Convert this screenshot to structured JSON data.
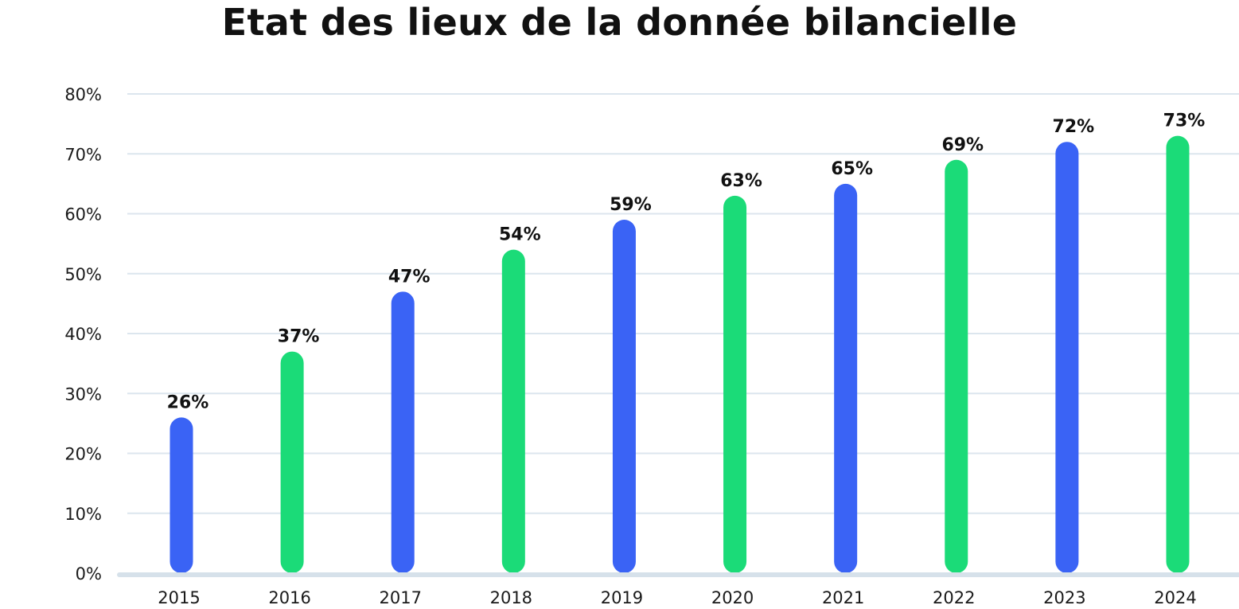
{
  "chart_data": {
    "type": "bar",
    "title": "Etat des lieux de la donnée bilancielle",
    "xlabel": "",
    "ylabel": "",
    "categories": [
      "2015",
      "2016",
      "2017",
      "2018",
      "2019",
      "2020",
      "2021",
      "2022",
      "2023",
      "2024"
    ],
    "values": [
      26,
      37,
      47,
      54,
      59,
      63,
      65,
      69,
      72,
      73
    ],
    "value_labels": [
      "26%",
      "37%",
      "47%",
      "54%",
      "59%",
      "63%",
      "65%",
      "69%",
      "72%",
      "73%"
    ],
    "ylim": [
      0,
      80
    ],
    "yticks": [
      0,
      10,
      20,
      30,
      40,
      50,
      60,
      70,
      80
    ],
    "ytick_labels": [
      "0%",
      "10%",
      "20%",
      "30%",
      "40%",
      "50%",
      "60%",
      "70%",
      "80%"
    ],
    "grid": true,
    "legend": "none",
    "colors": {
      "blue": "#3A63F5",
      "green": "#1BDB78",
      "grid": "#DCE6EE",
      "axis": "#D6E1EA",
      "bar_pattern": [
        "blue",
        "green",
        "blue",
        "green",
        "blue",
        "green",
        "blue",
        "green",
        "blue",
        "green"
      ]
    }
  }
}
